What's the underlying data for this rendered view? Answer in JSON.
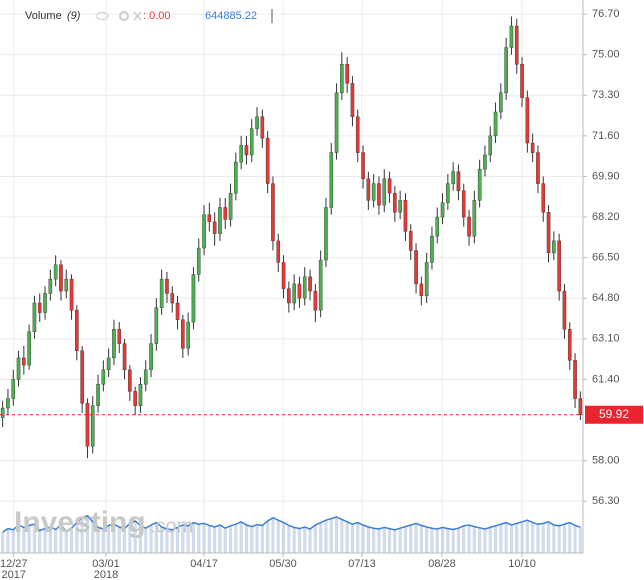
{
  "chart_data": {
    "type": "candlestick",
    "up_color": "#4caf50",
    "down_color": "#e53935",
    "wick_color": "#333333",
    "current_price_color": "#e8242c",
    "ylim": [
      54.13,
      77.29
    ],
    "yticks": [
      {
        "value": 56.3,
        "label": "56.30"
      },
      {
        "value": 58,
        "label": "58.00"
      },
      {
        "value": 61.4,
        "label": "61.40"
      },
      {
        "value": 63.1,
        "label": "63.10"
      },
      {
        "value": 64.8,
        "label": "64.80"
      },
      {
        "value": 66.5,
        "label": "66.50"
      },
      {
        "value": 68.2,
        "label": "68.20"
      },
      {
        "value": 69.9,
        "label": "69.90"
      },
      {
        "value": 71.6,
        "label": "71.60"
      },
      {
        "value": 73.3,
        "label": "73.30"
      },
      {
        "value": 75,
        "label": "75.00"
      },
      {
        "value": 76.7,
        "label": "76.70"
      }
    ],
    "xlim": [
      0,
      110
    ],
    "xticks": [
      {
        "value": 2.6,
        "label": "12/27",
        "year": "2017"
      },
      {
        "value": 20,
        "label": "03/01",
        "year": "2018"
      },
      {
        "value": 38.5,
        "label": "04/17"
      },
      {
        "value": 53.4,
        "label": "05/30"
      },
      {
        "value": 68.3,
        "label": "07/13"
      },
      {
        "value": 83.4,
        "label": "08/28"
      },
      {
        "value": 98.5,
        "label": "10/10"
      }
    ],
    "grid": true,
    "open": [
      59.8,
      60.2,
      60.6,
      61.4,
      62.3,
      62.0,
      63.4,
      64.6,
      64.2,
      65.0,
      65.6,
      66.2,
      65.1,
      65.6,
      64.3,
      62.6,
      60.4,
      58.6,
      60.3,
      61.2,
      61.8,
      62.3,
      63.5,
      62.9,
      61.8,
      60.9,
      60.3,
      61.2,
      61.8,
      62.9,
      64.4,
      65.6,
      65.0,
      64.6,
      63.9,
      62.7,
      63.8,
      65.8,
      66.9,
      68.3,
      68.0,
      67.5,
      68.6,
      68.1,
      69.2,
      70.5,
      71.2,
      70.8,
      71.9,
      72.4,
      71.5,
      69.6,
      67.2,
      66.3,
      65.2,
      64.6,
      65.4,
      64.8,
      65.7,
      65.1,
      64.3,
      66.4,
      68.6,
      70.9,
      73.4,
      74.6,
      73.8,
      72.4,
      70.9,
      69.8,
      68.9,
      69.6,
      68.7,
      69.8,
      69.2,
      68.4,
      68.9,
      67.6,
      66.8,
      65.4,
      64.9,
      66.3,
      67.4,
      68.2,
      68.8,
      69.6,
      70.1,
      69.3,
      68.2,
      67.4,
      68.9,
      70.2,
      70.8,
      71.6,
      72.6,
      73.4,
      75.3,
      76.2,
      74.6,
      73.2,
      71.3,
      70.9,
      69.6,
      68.4,
      66.7,
      67.2,
      65.1,
      63.5,
      62.2,
      60.6
    ],
    "high": [
      60.5,
      61.0,
      61.8,
      62.6,
      62.8,
      63.7,
      64.9,
      65.0,
      65.3,
      66.0,
      66.6,
      66.4,
      66.0,
      65.8,
      64.5,
      62.8,
      60.6,
      60.7,
      61.6,
      62.2,
      62.7,
      63.9,
      63.8,
      63.1,
      62.0,
      61.1,
      61.5,
      62.2,
      63.3,
      64.8,
      66.0,
      65.9,
      65.3,
      64.9,
      64.1,
      64.2,
      66.1,
      67.3,
      68.7,
      68.8,
      68.4,
      69.0,
      69.0,
      69.6,
      70.9,
      71.6,
      71.6,
      72.3,
      72.8,
      72.7,
      71.8,
      69.9,
      67.5,
      66.6,
      65.5,
      65.8,
      65.7,
      66.1,
      66.0,
      65.4,
      66.8,
      69.0,
      71.3,
      73.8,
      75.1,
      74.9,
      74.1,
      72.7,
      71.2,
      70.1,
      70.0,
      69.9,
      70.2,
      70.1,
      69.5,
      69.3,
      69.2,
      67.9,
      67.1,
      65.7,
      66.7,
      67.8,
      68.6,
      69.2,
      70.0,
      70.5,
      70.4,
      69.6,
      68.5,
      69.3,
      70.6,
      71.2,
      72.0,
      73.0,
      73.8,
      75.7,
      76.6,
      76.5,
      74.9,
      73.5,
      71.7,
      71.2,
      69.9,
      68.7,
      67.6,
      67.5,
      65.4,
      63.8,
      62.5,
      60.9
    ],
    "low": [
      59.4,
      59.9,
      60.3,
      61.1,
      61.6,
      61.8,
      63.1,
      63.8,
      63.9,
      64.7,
      65.3,
      64.7,
      64.8,
      63.9,
      62.2,
      60.0,
      58.1,
      58.3,
      60.0,
      60.9,
      61.5,
      62.0,
      62.5,
      61.4,
      60.5,
      59.9,
      60.0,
      60.9,
      61.5,
      62.6,
      64.1,
      64.6,
      64.2,
      63.5,
      62.3,
      62.4,
      63.5,
      65.5,
      66.6,
      67.6,
      67.0,
      67.2,
      67.7,
      67.8,
      68.9,
      70.2,
      70.4,
      70.5,
      71.6,
      71.1,
      69.2,
      66.8,
      65.9,
      64.8,
      64.2,
      64.3,
      64.4,
      64.5,
      64.7,
      63.8,
      64.0,
      66.1,
      68.3,
      70.6,
      73.1,
      73.4,
      72.0,
      70.5,
      69.4,
      68.5,
      68.6,
      68.3,
      68.4,
      68.8,
      68.0,
      68.1,
      67.2,
      66.4,
      65.0,
      64.5,
      64.6,
      66.0,
      67.1,
      67.9,
      68.5,
      69.3,
      68.9,
      67.8,
      67.0,
      67.1,
      68.6,
      69.9,
      70.5,
      71.3,
      72.3,
      73.1,
      75.0,
      74.2,
      72.8,
      70.9,
      70.5,
      69.2,
      68.0,
      66.3,
      66.4,
      64.7,
      63.1,
      61.8,
      60.2,
      59.7
    ],
    "close": [
      60.2,
      60.6,
      61.4,
      62.3,
      62.0,
      63.4,
      64.6,
      64.2,
      65.0,
      65.6,
      66.2,
      65.1,
      65.6,
      64.3,
      62.6,
      60.4,
      58.6,
      60.3,
      61.2,
      61.8,
      62.3,
      63.5,
      62.9,
      61.8,
      60.9,
      60.3,
      61.2,
      61.8,
      62.9,
      64.4,
      65.6,
      65.0,
      64.6,
      63.9,
      62.7,
      63.8,
      65.8,
      66.9,
      68.3,
      68.0,
      67.5,
      68.6,
      68.1,
      69.2,
      70.5,
      71.2,
      70.8,
      71.9,
      72.4,
      71.5,
      69.6,
      67.2,
      66.3,
      65.2,
      64.6,
      65.4,
      64.8,
      65.7,
      65.1,
      64.3,
      66.4,
      68.6,
      70.9,
      73.4,
      74.6,
      73.8,
      72.4,
      70.9,
      69.8,
      68.9,
      69.6,
      68.7,
      69.8,
      69.2,
      68.4,
      68.9,
      67.6,
      66.8,
      65.4,
      64.9,
      66.3,
      67.4,
      68.2,
      68.8,
      69.6,
      70.1,
      69.3,
      68.2,
      67.4,
      68.9,
      70.2,
      70.8,
      71.6,
      72.6,
      73.4,
      75.3,
      76.2,
      74.6,
      73.2,
      71.3,
      70.9,
      69.6,
      68.4,
      66.7,
      67.2,
      65.1,
      63.5,
      62.2,
      60.6,
      59.92
    ],
    "y2lim": [
      0,
      1500000
    ],
    "volume": {
      "name": "Volume",
      "period": "(9)",
      "readout": ": 0.00",
      "axis": "y2",
      "color": "#b0c4de",
      "line_color": "#3d7fd6",
      "values": [
        520000,
        610000,
        580000,
        700000,
        640000,
        690000,
        720000,
        560000,
        610000,
        650000,
        590000,
        700000,
        540000,
        620000,
        760000,
        880000,
        930000,
        780000,
        640000,
        600000,
        690000,
        720000,
        650000,
        610000,
        740000,
        800000,
        690000,
        620000,
        700000,
        760000,
        650000,
        600000,
        580000,
        640000,
        700000,
        680000,
        760000,
        720000,
        740000,
        690000,
        650000,
        700000,
        620000,
        680000,
        720000,
        780000,
        700000,
        660000,
        710000,
        690000,
        800000,
        880000,
        820000,
        760000,
        690000,
        640000,
        610000,
        650000,
        600000,
        700000,
        760000,
        820000,
        860000,
        900000,
        840000,
        780000,
        720000,
        760000,
        700000,
        650000,
        620000,
        600000,
        640000,
        610000,
        580000,
        620000,
        660000,
        700000,
        740000,
        690000,
        650000,
        620000,
        600000,
        640000,
        610000,
        590000,
        620000,
        680000,
        700000,
        660000,
        630000,
        600000,
        640000,
        680000,
        720000,
        760000,
        700000,
        740000,
        780000,
        820000,
        760000,
        720000,
        740000,
        780000,
        700000,
        680000,
        720000,
        760000,
        690000,
        644885.22
      ]
    },
    "watermark": [
      "Investing",
      ".com"
    ]
  }
}
